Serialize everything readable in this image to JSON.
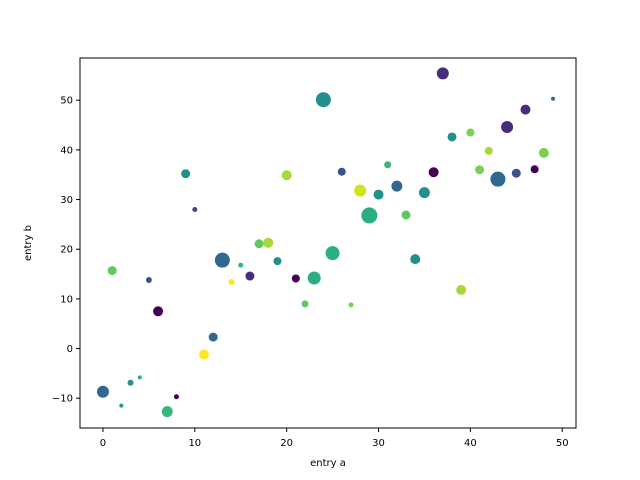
{
  "chart_data": {
    "type": "scatter",
    "xlabel": "entry a",
    "ylabel": "entry b",
    "xlim": [
      -2.5,
      51.5
    ],
    "ylim": [
      -16,
      58.5
    ],
    "xticks": [
      0,
      10,
      20,
      30,
      40,
      50
    ],
    "yticks": [
      -10,
      0,
      10,
      20,
      30,
      40,
      50
    ],
    "grid": false,
    "colormap": "viridis",
    "points": [
      {
        "x": 0,
        "y": -8.7,
        "size": 12,
        "color": "#31688e"
      },
      {
        "x": 1,
        "y": 15.7,
        "size": 9,
        "color": "#5ec962"
      },
      {
        "x": 2,
        "y": -11.5,
        "size": 4,
        "color": "#21918c"
      },
      {
        "x": 3,
        "y": -6.9,
        "size": 6,
        "color": "#21918c"
      },
      {
        "x": 4,
        "y": -5.8,
        "size": 4,
        "color": "#2ab07f"
      },
      {
        "x": 5,
        "y": 13.8,
        "size": 6,
        "color": "#3b528b"
      },
      {
        "x": 6,
        "y": 7.5,
        "size": 10,
        "color": "#440154"
      },
      {
        "x": 7,
        "y": -12.7,
        "size": 11,
        "color": "#35b779"
      },
      {
        "x": 8,
        "y": -9.7,
        "size": 5,
        "color": "#440154"
      },
      {
        "x": 9,
        "y": 35.2,
        "size": 9,
        "color": "#21918c"
      },
      {
        "x": 10,
        "y": 28.0,
        "size": 5,
        "color": "#414487"
      },
      {
        "x": 11,
        "y": -1.2,
        "size": 10,
        "color": "#fde725"
      },
      {
        "x": 12,
        "y": 2.3,
        "size": 9,
        "color": "#31688e"
      },
      {
        "x": 13,
        "y": 17.8,
        "size": 15,
        "color": "#31688e"
      },
      {
        "x": 14,
        "y": 13.4,
        "size": 6,
        "color": "#fde725"
      },
      {
        "x": 15,
        "y": 16.8,
        "size": 5,
        "color": "#35b779"
      },
      {
        "x": 16,
        "y": 14.6,
        "size": 9,
        "color": "#472d7b"
      },
      {
        "x": 17,
        "y": 21.1,
        "size": 9,
        "color": "#5ec962"
      },
      {
        "x": 18,
        "y": 21.3,
        "size": 10,
        "color": "#a5db36"
      },
      {
        "x": 19,
        "y": 17.6,
        "size": 8,
        "color": "#21918c"
      },
      {
        "x": 20,
        "y": 34.9,
        "size": 10,
        "color": "#a5db36"
      },
      {
        "x": 21,
        "y": 14.1,
        "size": 8,
        "color": "#440154"
      },
      {
        "x": 22,
        "y": 9.0,
        "size": 7,
        "color": "#5ec962"
      },
      {
        "x": 23,
        "y": 14.2,
        "size": 13,
        "color": "#2ab07f"
      },
      {
        "x": 24,
        "y": 50.1,
        "size": 15,
        "color": "#21918c"
      },
      {
        "x": 25,
        "y": 19.2,
        "size": 14,
        "color": "#2ab07f"
      },
      {
        "x": 26,
        "y": 35.6,
        "size": 8,
        "color": "#3b528b"
      },
      {
        "x": 27,
        "y": 8.8,
        "size": 5,
        "color": "#7ad151"
      },
      {
        "x": 28,
        "y": 31.8,
        "size": 12,
        "color": "#d2e21b"
      },
      {
        "x": 29,
        "y": 26.8,
        "size": 16,
        "color": "#2ab07f"
      },
      {
        "x": 30,
        "y": 31.0,
        "size": 10,
        "color": "#21918c"
      },
      {
        "x": 31,
        "y": 37.0,
        "size": 7,
        "color": "#35b779"
      },
      {
        "x": 32,
        "y": 32.7,
        "size": 11,
        "color": "#31688e"
      },
      {
        "x": 33,
        "y": 26.9,
        "size": 9,
        "color": "#5ec962"
      },
      {
        "x": 34,
        "y": 18.0,
        "size": 10,
        "color": "#21918c"
      },
      {
        "x": 35,
        "y": 31.4,
        "size": 11,
        "color": "#21918c"
      },
      {
        "x": 36,
        "y": 35.5,
        "size": 10,
        "color": "#440154"
      },
      {
        "x": 37,
        "y": 55.4,
        "size": 12,
        "color": "#472d7b"
      },
      {
        "x": 38,
        "y": 42.6,
        "size": 9,
        "color": "#21918c"
      },
      {
        "x": 39,
        "y": 11.8,
        "size": 10,
        "color": "#a5db36"
      },
      {
        "x": 40,
        "y": 43.5,
        "size": 8,
        "color": "#7ad151"
      },
      {
        "x": 41,
        "y": 36.0,
        "size": 9,
        "color": "#7ad151"
      },
      {
        "x": 42,
        "y": 39.8,
        "size": 8,
        "color": "#a5db36"
      },
      {
        "x": 43,
        "y": 34.1,
        "size": 15,
        "color": "#31688e"
      },
      {
        "x": 44,
        "y": 44.6,
        "size": 12,
        "color": "#472d7b"
      },
      {
        "x": 45,
        "y": 35.3,
        "size": 9,
        "color": "#3b528b"
      },
      {
        "x": 46,
        "y": 48.1,
        "size": 10,
        "color": "#472d7b"
      },
      {
        "x": 47,
        "y": 36.1,
        "size": 8,
        "color": "#440154"
      },
      {
        "x": 48,
        "y": 39.4,
        "size": 10,
        "color": "#7ad151"
      },
      {
        "x": 49,
        "y": 50.3,
        "size": 4,
        "color": "#31688e"
      }
    ]
  }
}
